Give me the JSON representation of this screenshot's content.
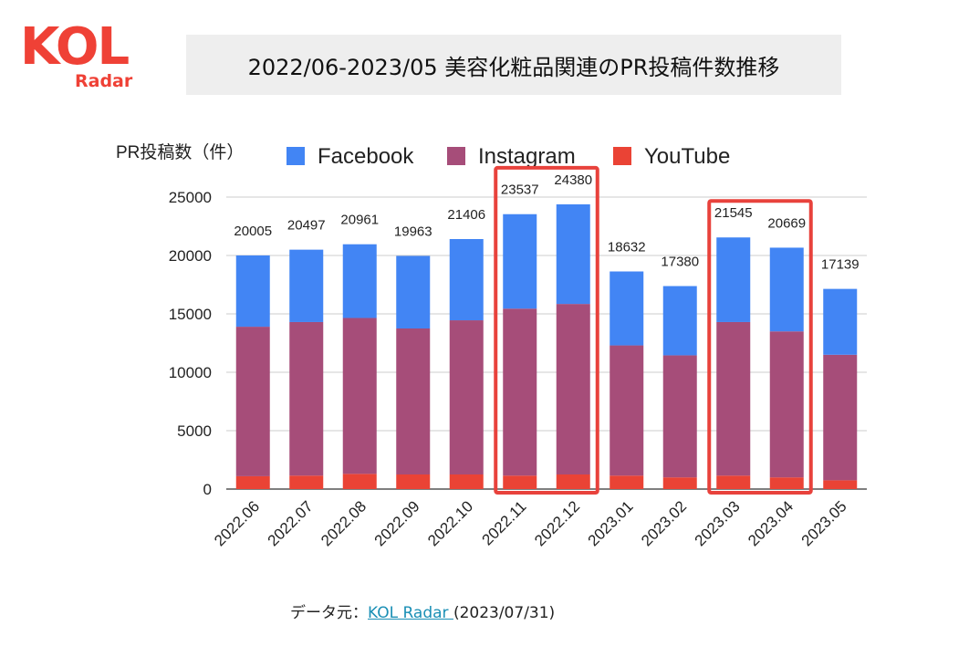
{
  "logo": {
    "main": "KOL",
    "sub": "Radar",
    "color": "#ef4136"
  },
  "title": "2022/06-2023/05 美容化粧品関連のPR投稿件数推移",
  "source": {
    "prefix": "データ元：",
    "link_text": "KOL Radar ",
    "date": "(2023/07/31)"
  },
  "chart_data": {
    "type": "bar",
    "stacked": true,
    "ylabel": "PR投稿数（件）",
    "ylim": [
      0,
      25000
    ],
    "yticks": [
      0,
      5000,
      10000,
      15000,
      20000,
      25000
    ],
    "grid": true,
    "legend_position": "top",
    "categories": [
      "2022.06",
      "2022.07",
      "2022.08",
      "2022.09",
      "2022.10",
      "2022.11",
      "2022.12",
      "2023.01",
      "2023.02",
      "2023.03",
      "2023.04",
      "2023.05"
    ],
    "series": [
      {
        "name": "YouTube",
        "color": "#ea4335",
        "values": [
          1100,
          1150,
          1300,
          1250,
          1250,
          1150,
          1250,
          1150,
          1000,
          1150,
          1000,
          750
        ]
      },
      {
        "name": "Instagram",
        "color": "#a64d79",
        "values": [
          12800,
          13150,
          13350,
          12500,
          13200,
          14300,
          14600,
          11150,
          10450,
          13150,
          12500,
          10750
        ]
      },
      {
        "name": "Facebook",
        "color": "#4285f4",
        "values": [
          6105,
          6197,
          6311,
          6213,
          6956,
          8087,
          8530,
          6332,
          5930,
          7245,
          7169,
          5639
        ]
      }
    ],
    "legend_order": [
      "Facebook",
      "Instagram",
      "YouTube"
    ],
    "totals": [
      20005,
      20497,
      20961,
      19963,
      21406,
      23537,
      24380,
      18632,
      17380,
      21545,
      20669,
      17139
    ],
    "highlight_groups": [
      [
        "2022.11",
        "2022.12"
      ],
      [
        "2023.03",
        "2023.04"
      ]
    ],
    "highlight_color": "#e8423c"
  }
}
